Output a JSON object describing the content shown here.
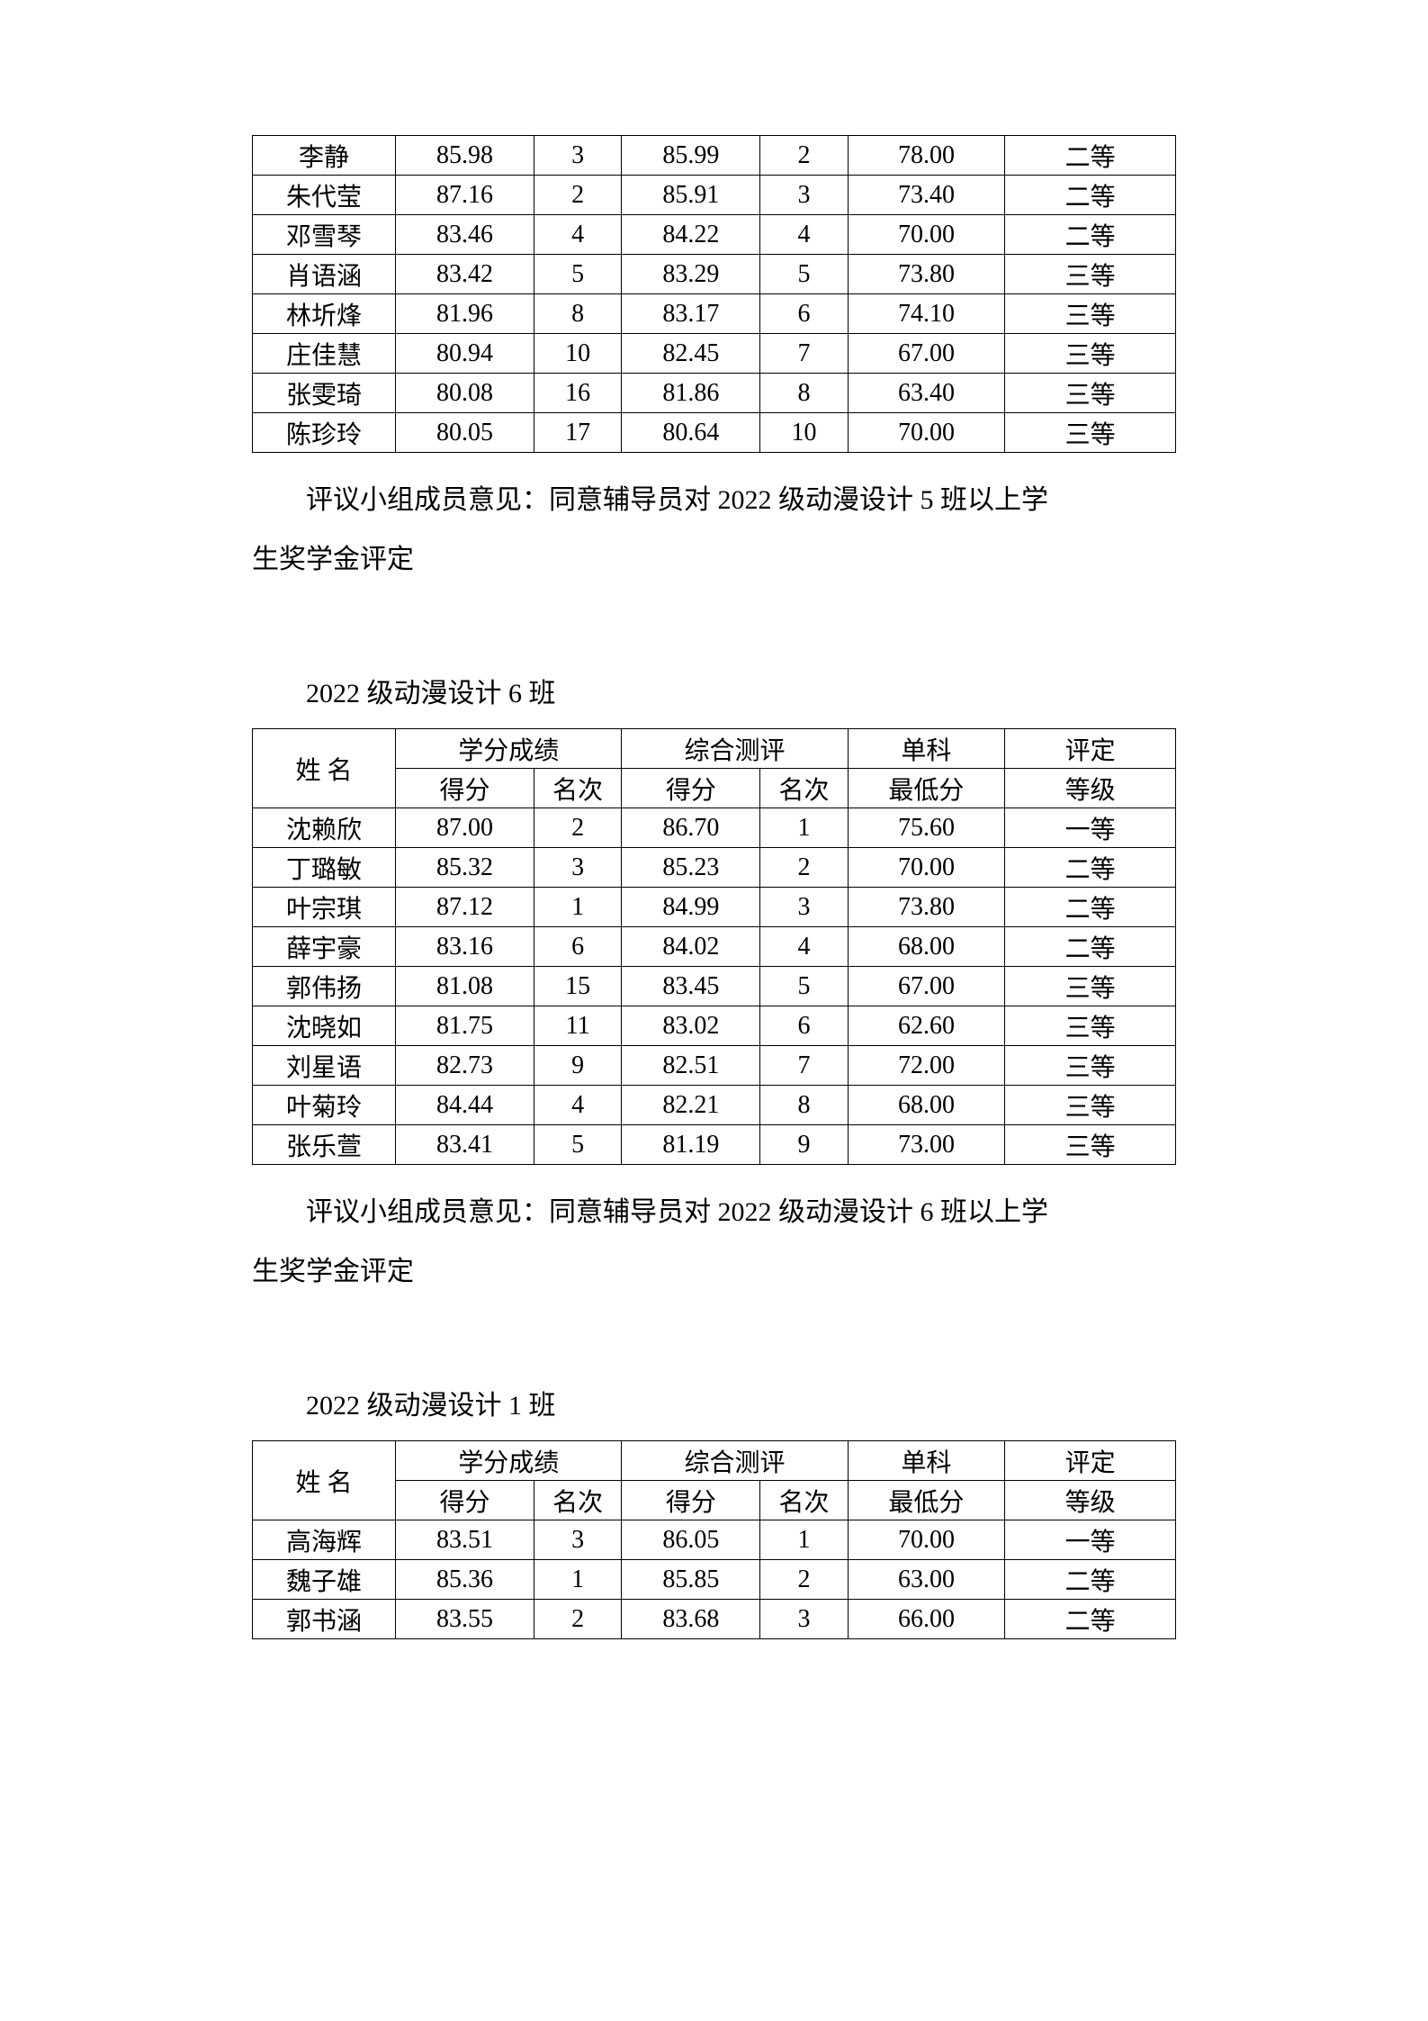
{
  "table1": {
    "rows": [
      [
        "李静",
        "85.98",
        "3",
        "85.99",
        "2",
        "78.00",
        "二等"
      ],
      [
        "朱代莹",
        "87.16",
        "2",
        "85.91",
        "3",
        "73.40",
        "二等"
      ],
      [
        "邓雪琴",
        "83.46",
        "4",
        "84.22",
        "4",
        "70.00",
        "二等"
      ],
      [
        "肖语涵",
        "83.42",
        "5",
        "83.29",
        "5",
        "73.80",
        "三等"
      ],
      [
        "林圻烽",
        "81.96",
        "8",
        "83.17",
        "6",
        "74.10",
        "三等"
      ],
      [
        "庄佳慧",
        "80.94",
        "10",
        "82.45",
        "7",
        "67.00",
        "三等"
      ],
      [
        "张雯琦",
        "80.08",
        "16",
        "81.86",
        "8",
        "63.40",
        "三等"
      ],
      [
        "陈珍玲",
        "80.05",
        "17",
        "80.64",
        "10",
        "70.00",
        "三等"
      ]
    ]
  },
  "comment1_line1": "评议小组成员意见：同意辅导员对 2022 级动漫设计 5 班以上学",
  "comment1_line2": "生奖学金评定",
  "section2_title": "2022 级动漫设计 6 班",
  "headers": {
    "name": "姓 名",
    "credit": "学分成绩",
    "comp": "综合测评",
    "single": "单科",
    "eval": "评定",
    "score": "得分",
    "rank": "名次",
    "min": "最低分",
    "grade": "等级"
  },
  "table2": {
    "rows": [
      [
        "沈赖欣",
        "87.00",
        "2",
        "86.70",
        "1",
        "75.60",
        "一等"
      ],
      [
        "丁璐敏",
        "85.32",
        "3",
        "85.23",
        "2",
        "70.00",
        "二等"
      ],
      [
        "叶宗琪",
        "87.12",
        "1",
        "84.99",
        "3",
        "73.80",
        "二等"
      ],
      [
        "薛宇豪",
        "83.16",
        "6",
        "84.02",
        "4",
        "68.00",
        "二等"
      ],
      [
        "郭伟扬",
        "81.08",
        "15",
        "83.45",
        "5",
        "67.00",
        "三等"
      ],
      [
        "沈晓如",
        "81.75",
        "11",
        "83.02",
        "6",
        "62.60",
        "三等"
      ],
      [
        "刘星语",
        "82.73",
        "9",
        "82.51",
        "7",
        "72.00",
        "三等"
      ],
      [
        "叶菊玲",
        "84.44",
        "4",
        "82.21",
        "8",
        "68.00",
        "三等"
      ],
      [
        "张乐萱",
        "83.41",
        "5",
        "81.19",
        "9",
        "73.00",
        "三等"
      ]
    ]
  },
  "comment2_line1": "评议小组成员意见：同意辅导员对 2022 级动漫设计 6 班以上学",
  "comment2_line2": "生奖学金评定",
  "section3_title": "2022 级动漫设计 1 班",
  "table3": {
    "rows": [
      [
        "高海辉",
        "83.51",
        "3",
        "86.05",
        "1",
        "70.00",
        "一等"
      ],
      [
        "魏子雄",
        "85.36",
        "1",
        "85.85",
        "2",
        "63.00",
        "二等"
      ],
      [
        "郭书涵",
        "83.55",
        "2",
        "83.68",
        "3",
        "66.00",
        "二等"
      ]
    ]
  }
}
